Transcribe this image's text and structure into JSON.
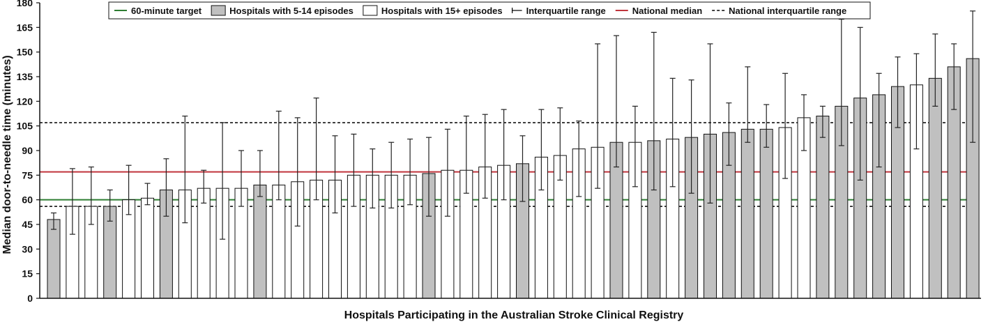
{
  "chart_data": {
    "type": "bar",
    "title": "",
    "xlabel": "Hospitals Participating in the Australian Stroke Clinical Registry",
    "ylabel": "Median door-to-needle time (minutes)",
    "ylim": [
      0,
      180
    ],
    "yticks": [
      0,
      15,
      30,
      45,
      60,
      75,
      90,
      105,
      120,
      135,
      150,
      165,
      180
    ],
    "reference_lines": [
      {
        "name": "60-minute target",
        "value": 60,
        "color": "#2e7d32",
        "style": "solid"
      },
      {
        "name": "National median",
        "value": 77,
        "color": "#c0343c",
        "style": "solid"
      },
      {
        "name": "National interquartile range (lower)",
        "value": 56,
        "color": "#000000",
        "style": "dashed"
      },
      {
        "name": "National interquartile range (upper)",
        "value": 107,
        "color": "#000000",
        "style": "dashed"
      }
    ],
    "legend": {
      "placement": "top",
      "items": [
        {
          "label": "60-minute target",
          "kind": "line",
          "color": "#2e7d32"
        },
        {
          "label": "Hospitals with 5-14 episodes",
          "kind": "box",
          "color": "#c0c0c0"
        },
        {
          "label": "Hospitals with 15+ episodes",
          "kind": "box",
          "color": "#ffffff"
        },
        {
          "label": "Interquartile range",
          "kind": "errorbar",
          "color": "#000000"
        },
        {
          "label": "National median",
          "kind": "line",
          "color": "#c0343c"
        },
        {
          "label": "National interquartile range",
          "kind": "dashed",
          "color": "#000000"
        }
      ]
    },
    "groups": {
      "small": "Hospitals with 5-14 episodes",
      "large": "Hospitals with 15+ episodes"
    },
    "series": [
      {
        "name": "Median door-to-needle time",
        "values": [
          48,
          56,
          56,
          56,
          60,
          61,
          66,
          66,
          67,
          67,
          67,
          69,
          69,
          71,
          72,
          72,
          75,
          75,
          75,
          75,
          76,
          78,
          78,
          80,
          81,
          82,
          86,
          87,
          91,
          92,
          95,
          95,
          96,
          97,
          98,
          100,
          101,
          103,
          103,
          104,
          110,
          111,
          117,
          122,
          124,
          129,
          130,
          134,
          141,
          146
        ],
        "group": [
          "small",
          "large",
          "large",
          "small",
          "large",
          "large",
          "small",
          "large",
          "large",
          "large",
          "large",
          "small",
          "large",
          "large",
          "large",
          "large",
          "large",
          "large",
          "large",
          "large",
          "small",
          "large",
          "large",
          "large",
          "large",
          "small",
          "large",
          "large",
          "large",
          "large",
          "small",
          "large",
          "small",
          "large",
          "small",
          "small",
          "small",
          "small",
          "small",
          "large",
          "large",
          "small",
          "small",
          "small",
          "small",
          "small",
          "large",
          "small",
          "small",
          "small"
        ],
        "iqr_low": [
          42,
          39,
          45,
          47,
          51,
          57,
          50,
          46,
          58,
          36,
          56,
          62,
          60,
          44,
          60,
          52,
          56,
          55,
          55,
          57,
          50,
          50,
          64,
          61,
          60,
          59,
          66,
          72,
          62,
          67,
          80,
          68,
          66,
          68,
          64,
          58,
          81,
          95,
          92,
          73,
          90,
          98,
          93,
          72,
          80,
          104,
          91,
          117,
          115,
          95
        ],
        "iqr_high": [
          52,
          79,
          80,
          66,
          81,
          70,
          85,
          111,
          78,
          107,
          90,
          90,
          114,
          110,
          122,
          99,
          100,
          91,
          95,
          97,
          98,
          103,
          111,
          112,
          115,
          99,
          115,
          116,
          108,
          155,
          160,
          117,
          162,
          134,
          133,
          155,
          119,
          141,
          118,
          137,
          124,
          117,
          170,
          165,
          137,
          147,
          149,
          161,
          155,
          175
        ]
      }
    ]
  }
}
